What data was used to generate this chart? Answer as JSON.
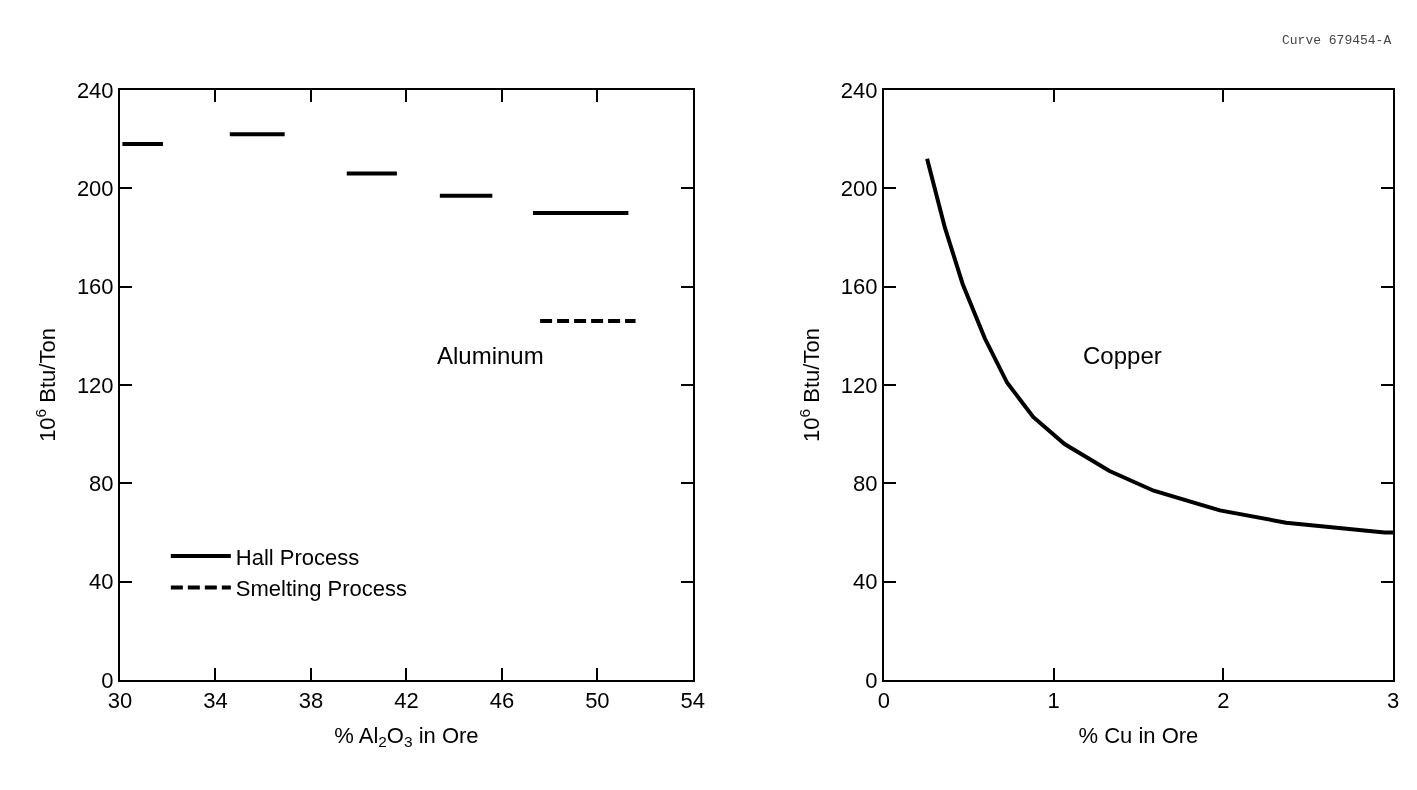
{
  "chart_data": [
    {
      "type": "line",
      "xlabel": "% Al$_{2}$O$_{3}$ in Ore",
      "ylabel": "10$^{6}$ Btu/Ton",
      "xlim": [
        30,
        54
      ],
      "xticks": [
        30,
        34,
        38,
        42,
        46,
        50,
        54
      ],
      "ylim": [
        0,
        240
      ],
      "yticks": [
        0,
        40,
        80,
        120,
        160,
        200,
        240
      ],
      "legend": "bottom left",
      "marker": "none",
      "annotations": [
        "Aluminum"
      ],
      "series": [
        {
          "name": "Hall Process",
          "color": "#000000",
          "line_style": "solid",
          "x": [
            30.1,
            31.8,
            null,
            34.6,
            36.9,
            null,
            39.5,
            41.6,
            null,
            43.4,
            45.6,
            null,
            47.3,
            51.3
          ],
          "values": [
            218,
            218,
            null,
            222,
            222,
            null,
            206,
            206,
            null,
            197,
            197,
            null,
            190,
            190
          ]
        },
        {
          "name": "Smelting Process",
          "color": "#000000",
          "line_style": "dashed",
          "x": [
            47.6,
            51.6
          ],
          "values": [
            146,
            146
          ]
        }
      ]
    },
    {
      "type": "line",
      "xlabel": "% Cu in Ore",
      "ylabel": "10$^{6}$ Btu/Ton",
      "xlim": [
        0,
        3
      ],
      "xticks": [
        0,
        1,
        2,
        3
      ],
      "ylim": [
        0,
        240
      ],
      "yticks": [
        0,
        40,
        80,
        120,
        160,
        200,
        240
      ],
      "legend": false,
      "marker": "none",
      "annotations": [
        "Copper",
        "Curve 679454-A"
      ],
      "series": [
        {
          "color": "#000000",
          "line_style": "solid",
          "x": [
            0.255,
            0.36,
            0.465,
            0.595,
            0.726,
            0.88,
            1.065,
            1.33,
            1.59,
            1.98,
            2.37,
            2.95,
            3.0
          ],
          "values": [
            212,
            184,
            161,
            139,
            121,
            107,
            96,
            85,
            77,
            69,
            64,
            60,
            60
          ]
        }
      ]
    }
  ]
}
